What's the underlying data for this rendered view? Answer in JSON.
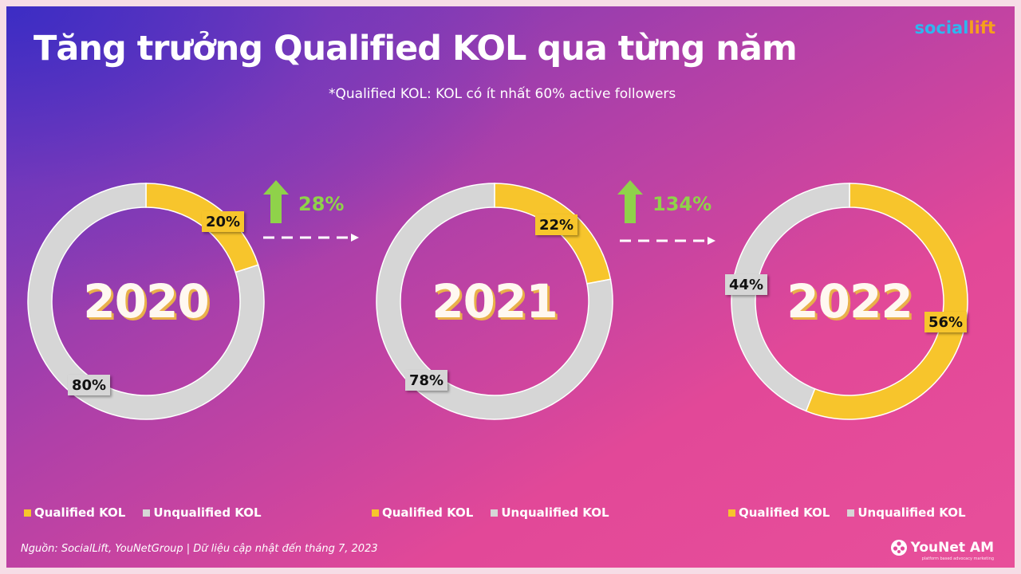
{
  "header": {
    "title": "Tăng trưởng Qualified KOL qua từng năm",
    "subtitle": "*Qualified KOL: KOL có ít nhất 60% active followers",
    "brand_part1": "social",
    "brand_part2": "lift"
  },
  "colors": {
    "qualified": "#f7c52c",
    "unqualified": "#d6d6d6",
    "growth": "#8fd24a"
  },
  "chart_data": [
    {
      "type": "pie",
      "variant": "donut",
      "center_label": "2020",
      "slices": [
        {
          "name": "Qualified KOL",
          "value": 20,
          "label": "20%"
        },
        {
          "name": "Unqualified KOL",
          "value": 80,
          "label": "80%"
        }
      ],
      "legend": [
        "Qualified KOL",
        "Unqualified KOL"
      ]
    },
    {
      "type": "pie",
      "variant": "donut",
      "center_label": "2021",
      "slices": [
        {
          "name": "Qualified KOL",
          "value": 22,
          "label": "22%"
        },
        {
          "name": "Unqualified KOL",
          "value": 78,
          "label": "78%"
        }
      ],
      "legend": [
        "Qualified KOL",
        "Unqualified KOL"
      ]
    },
    {
      "type": "pie",
      "variant": "donut",
      "center_label": "2022",
      "slices": [
        {
          "name": "Qualified KOL",
          "value": 56,
          "label": "56%"
        },
        {
          "name": "Unqualified KOL",
          "value": 44,
          "label": "44%"
        }
      ],
      "legend": [
        "Qualified KOL",
        "Unqualified KOL"
      ]
    }
  ],
  "growth": [
    {
      "label": "28%"
    },
    {
      "label": "134%"
    }
  ],
  "footer": {
    "source": "Nguồn: SocialLift, YouNetGroup | Dữ liệu cập nhật đến tháng 7, 2023",
    "logo_text": "YouNet AM",
    "logo_tagline": "platform based advocacy marketing"
  }
}
